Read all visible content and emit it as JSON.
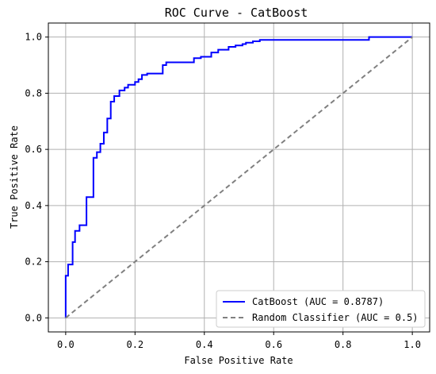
{
  "chart_data": {
    "type": "line",
    "title": "ROC Curve - CatBoost",
    "xlabel": "False Positive Rate",
    "ylabel": "True Positive Rate",
    "xlim": [
      -0.05,
      1.05
    ],
    "ylim": [
      -0.05,
      1.05
    ],
    "xticks": [
      "0.0",
      "0.2",
      "0.4",
      "0.6",
      "0.8",
      "1.0"
    ],
    "yticks": [
      "0.0",
      "0.2",
      "0.4",
      "0.6",
      "0.8",
      "1.0"
    ],
    "grid": true,
    "legend_position": "lower-right",
    "series": [
      {
        "name": "CatBoost (AUC = 0.8787)",
        "color": "#0000ff",
        "style": "solid",
        "step": true,
        "x": [
          0.0,
          0.0,
          0.007,
          0.007,
          0.02,
          0.02,
          0.027,
          0.027,
          0.04,
          0.04,
          0.06,
          0.06,
          0.08,
          0.08,
          0.09,
          0.09,
          0.1,
          0.1,
          0.11,
          0.11,
          0.12,
          0.12,
          0.13,
          0.13,
          0.14,
          0.14,
          0.155,
          0.155,
          0.17,
          0.17,
          0.18,
          0.18,
          0.2,
          0.2,
          0.21,
          0.21,
          0.22,
          0.22,
          0.235,
          0.235,
          0.28,
          0.28,
          0.29,
          0.29,
          0.37,
          0.37,
          0.39,
          0.39,
          0.42,
          0.42,
          0.44,
          0.44,
          0.47,
          0.47,
          0.49,
          0.49,
          0.51,
          0.51,
          0.52,
          0.52,
          0.54,
          0.54,
          0.56,
          0.56,
          0.875,
          0.875,
          1.0
        ],
        "y": [
          0.0,
          0.15,
          0.15,
          0.19,
          0.19,
          0.27,
          0.27,
          0.31,
          0.31,
          0.33,
          0.33,
          0.43,
          0.43,
          0.57,
          0.57,
          0.59,
          0.59,
          0.62,
          0.62,
          0.66,
          0.66,
          0.71,
          0.71,
          0.77,
          0.77,
          0.79,
          0.79,
          0.81,
          0.81,
          0.82,
          0.82,
          0.83,
          0.83,
          0.84,
          0.84,
          0.85,
          0.85,
          0.865,
          0.865,
          0.87,
          0.87,
          0.9,
          0.9,
          0.91,
          0.91,
          0.925,
          0.925,
          0.93,
          0.93,
          0.945,
          0.945,
          0.955,
          0.955,
          0.965,
          0.965,
          0.97,
          0.97,
          0.975,
          0.975,
          0.98,
          0.98,
          0.985,
          0.985,
          0.99,
          0.99,
          1.0,
          1.0
        ]
      },
      {
        "name": "Random Classifier (AUC = 0.5)",
        "color": "#808080",
        "style": "dashed",
        "step": false,
        "x": [
          0.0,
          1.0
        ],
        "y": [
          0.0,
          1.0
        ]
      }
    ]
  }
}
